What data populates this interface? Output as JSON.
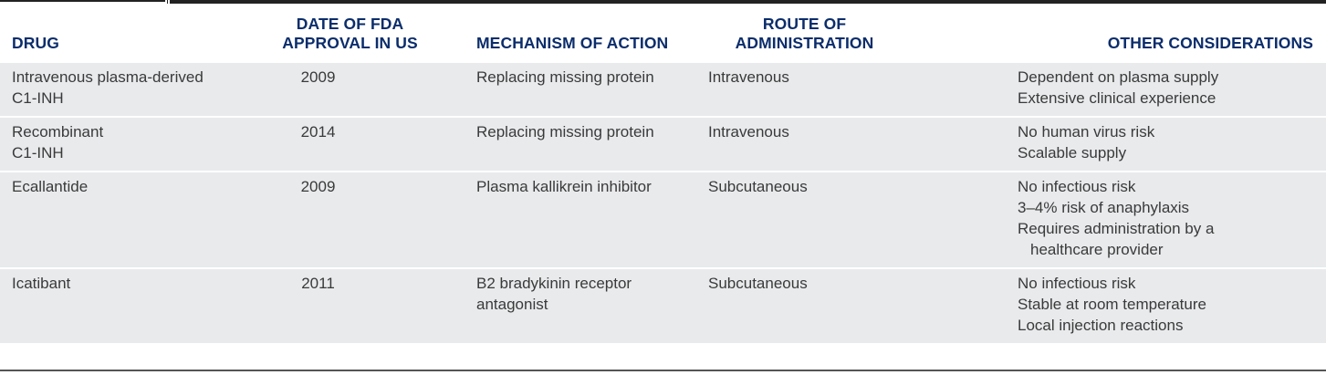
{
  "table": {
    "headers": {
      "drug": [
        "DRUG"
      ],
      "date": [
        "DATE OF FDA",
        "APPROVAL IN US"
      ],
      "mechanism": [
        "MECHANISM OF ACTION"
      ],
      "route": [
        "ROUTE OF",
        "ADMINISTRATION"
      ],
      "other": [
        "OTHER CONSIDERATIONS"
      ]
    },
    "rows": [
      {
        "drug": [
          "Intravenous plasma-derived",
          "C1-INH"
        ],
        "date": "2009",
        "mechanism": "Replacing missing protein",
        "route": "Intravenous",
        "other": [
          "Dependent on plasma supply",
          "Extensive clinical experience"
        ]
      },
      {
        "drug": [
          "Recombinant",
          "C1-INH"
        ],
        "date": "2014",
        "mechanism": "Replacing missing protein",
        "route": "Intravenous",
        "other": [
          "No human virus risk",
          "Scalable supply"
        ]
      },
      {
        "drug": [
          "Ecallantide"
        ],
        "date": "2009",
        "mechanism": "Plasma kallikrein inhibitor",
        "route": "Subcutaneous",
        "other": [
          "No infectious risk",
          "3–4% risk of anaphylaxis",
          "Requires administration by a",
          "healthcare provider"
        ]
      },
      {
        "drug": [
          "Icatibant"
        ],
        "date": "2011",
        "mechanism": "B2 bradykinin receptor antagonist",
        "route": "Subcutaneous",
        "other": [
          "No infectious risk",
          "Stable at room temperature",
          "Local injection reactions"
        ]
      }
    ]
  },
  "colors": {
    "header_text": "#0b2d6b",
    "row_background": "#e8eaec",
    "body_text": "#3a3a3a"
  }
}
